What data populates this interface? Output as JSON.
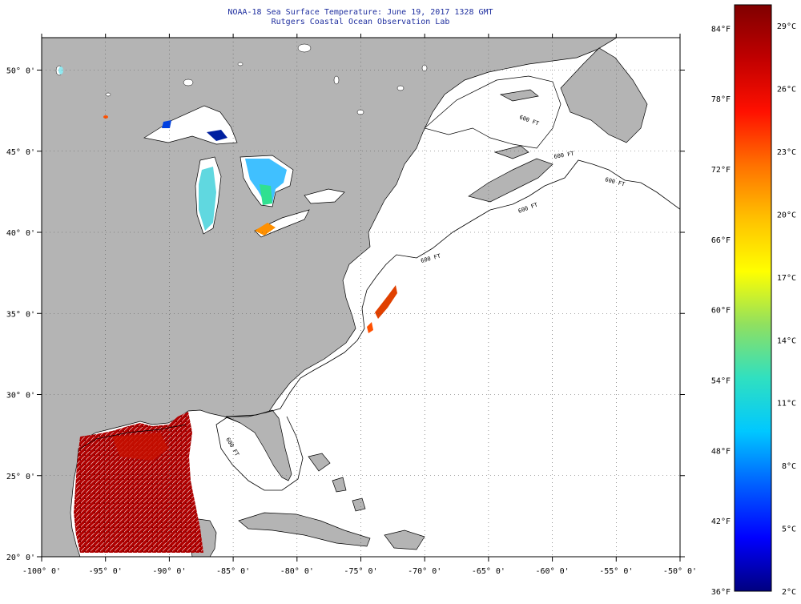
{
  "header": {
    "title": "NOAA-18 Sea Surface Temperature:  June 19, 2017 1328 GMT",
    "subtitle": "Rutgers Coastal Ocean Observation Lab"
  },
  "map": {
    "lon_range": [
      -100,
      -50
    ],
    "lat_range": [
      20,
      52
    ],
    "lon_ticks": [
      {
        "value": -100,
        "label": "-100° 0'"
      },
      {
        "value": -95,
        "label": "-95° 0'"
      },
      {
        "value": -90,
        "label": "-90° 0'"
      },
      {
        "value": -85,
        "label": "-85° 0'"
      },
      {
        "value": -80,
        "label": "-80° 0'"
      },
      {
        "value": -75,
        "label": "-75° 0'"
      },
      {
        "value": -70,
        "label": "-70° 0'"
      },
      {
        "value": -65,
        "label": "-65° 0'"
      },
      {
        "value": -60,
        "label": "-60° 0'"
      },
      {
        "value": -55,
        "label": "-55° 0'"
      },
      {
        "value": -50,
        "label": "-50° 0'"
      }
    ],
    "lat_ticks": [
      {
        "value": 20,
        "label": "20° 0'"
      },
      {
        "value": 25,
        "label": "25° 0'"
      },
      {
        "value": 30,
        "label": "30° 0'"
      },
      {
        "value": 35,
        "label": "35° 0'"
      },
      {
        "value": 40,
        "label": "40° 0'"
      },
      {
        "value": 45,
        "label": "45° 0'"
      },
      {
        "value": 50,
        "label": "50° 0'"
      }
    ],
    "contour_labels": [
      "600 FT",
      "600 FT",
      "600 FT",
      "600 FT",
      "600 FT",
      "600 FT"
    ],
    "colors": {
      "land": "#b4b4b4",
      "ocean": "#ffffff",
      "grid": "#555555",
      "coastline": "#000000"
    }
  },
  "colorbar": {
    "fahrenheit_labels": [
      "84°F",
      "78°F",
      "72°F",
      "66°F",
      "60°F",
      "54°F",
      "48°F",
      "42°F",
      "36°F"
    ],
    "celsius_labels": [
      "29°C",
      "26°C",
      "23°C",
      "20°C",
      "17°C",
      "14°C",
      "11°C",
      "8°C",
      "5°C",
      "2°C"
    ],
    "f_range": [
      36,
      86
    ],
    "c_range": [
      2,
      30
    ],
    "gradient": [
      "#00007f",
      "#0000ff",
      "#0060ff",
      "#00c8ff",
      "#30e0c0",
      "#90e060",
      "#ffff00",
      "#ffc000",
      "#ff7000",
      "#ff1000",
      "#c00000",
      "#800000"
    ]
  },
  "sst_patches": [
    {
      "name": "gulf-of-mexico",
      "colors": [
        "#b00000",
        "#c81000",
        "#8c0000",
        "#e03000"
      ]
    },
    {
      "name": "gulf-stream",
      "colors": [
        "#e04000",
        "#ff5000"
      ]
    },
    {
      "name": "lake-michigan",
      "colors": [
        "#60d8e0",
        "#90e8f0"
      ]
    },
    {
      "name": "lake-huron",
      "colors": [
        "#40c0ff",
        "#80e0ff",
        "#30e090"
      ]
    },
    {
      "name": "lake-erie",
      "colors": [
        "#ff9000",
        "#ffb000"
      ]
    },
    {
      "name": "lake-superior",
      "colors": [
        "#0020a0",
        "#0040e0"
      ]
    }
  ]
}
